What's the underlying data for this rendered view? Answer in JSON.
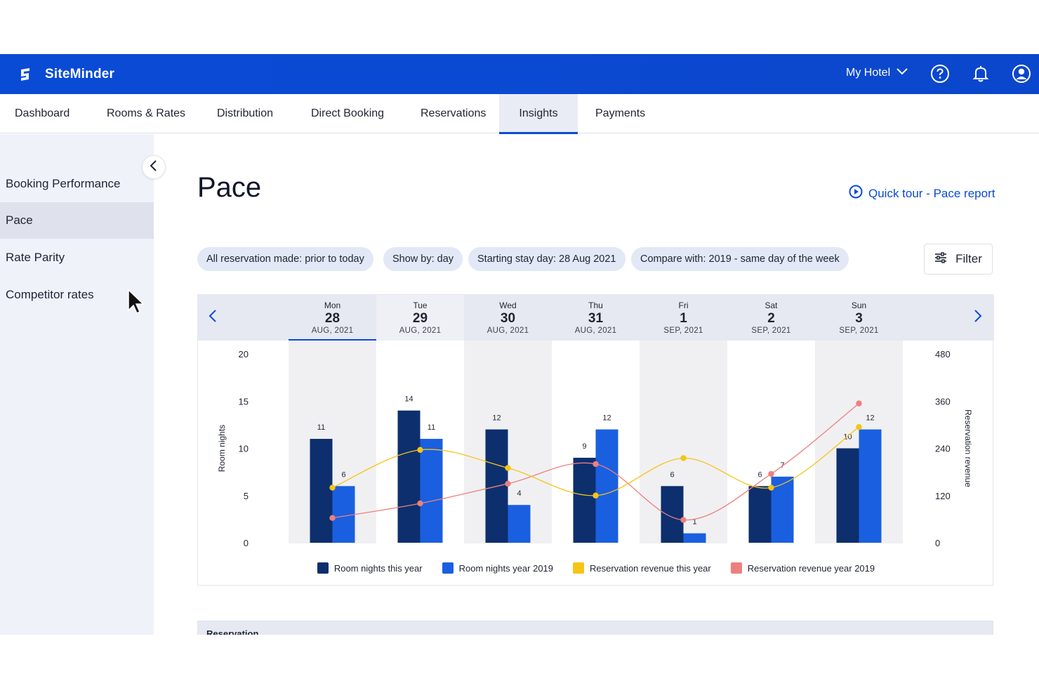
{
  "app": {
    "name": "SiteMinder"
  },
  "header": {
    "hotel": "My Hotel"
  },
  "nav": {
    "tabs": [
      {
        "label": "Dashboard"
      },
      {
        "label": "Rooms & Rates"
      },
      {
        "label": "Distribution"
      },
      {
        "label": "Direct Booking"
      },
      {
        "label": "Reservations"
      },
      {
        "label": "Insights",
        "active": true
      },
      {
        "label": "Payments"
      }
    ]
  },
  "sidebar": {
    "items": [
      {
        "label": "Booking Performance"
      },
      {
        "label": "Pace",
        "active": true
      },
      {
        "label": "Rate Parity"
      },
      {
        "label": "Competitor rates"
      }
    ]
  },
  "page": {
    "title": "Pace",
    "quick_tour": "Quick tour - Pace report"
  },
  "filters": {
    "chips": [
      "All reservation made: prior to today",
      "Show by: day",
      "Starting stay day: 28 Aug 2021",
      "Compare with:  2019 - same day of the week"
    ],
    "filter_label": "Filter"
  },
  "dates": [
    {
      "dow": "Mon",
      "day": "28",
      "month": "AUG, 2021",
      "selected": true
    },
    {
      "dow": "Tue",
      "day": "29",
      "month": "AUG, 2021"
    },
    {
      "dow": "Wed",
      "day": "30",
      "month": "AUG, 2021"
    },
    {
      "dow": "Thu",
      "day": "31",
      "month": "AUG, 2021"
    },
    {
      "dow": "Fri",
      "day": "1",
      "month": "SEP, 2021"
    },
    {
      "dow": "Sat",
      "day": "2",
      "month": "SEP, 2021"
    },
    {
      "dow": "Sun",
      "day": "3",
      "month": "SEP, 2021"
    }
  ],
  "colors": {
    "brand": "#0a4bd6",
    "room_nights_this_year": "#0d2f6e",
    "room_nights_2019": "#1a5fe0",
    "revenue_this_year": "#f6c416",
    "revenue_2019": "#ee7f7f"
  },
  "chart_data": {
    "type": "bar",
    "categories": [
      "Mon 28",
      "Tue 29",
      "Wed 30",
      "Thu 31",
      "Fri 1",
      "Sat 2",
      "Sun 3"
    ],
    "ylabel": "Room nights",
    "y2label": "Reservation revenue",
    "ylim": [
      0,
      20
    ],
    "y2lim": [
      0,
      480
    ],
    "yticks": [
      0,
      5,
      10,
      15,
      20
    ],
    "y2ticks": [
      0,
      120,
      240,
      360,
      480
    ],
    "series": [
      {
        "name": "Room nights this year",
        "kind": "bar",
        "axis": "left",
        "values": [
          11,
          14,
          12,
          9,
          6,
          6,
          10
        ]
      },
      {
        "name": "Room nights year 2019",
        "kind": "bar",
        "axis": "left",
        "values": [
          6,
          11,
          4,
          12,
          1,
          7,
          12
        ]
      },
      {
        "name": "Reservation revenue this year",
        "kind": "line",
        "axis": "right",
        "values": [
          140,
          236,
          190,
          120,
          215,
          140,
          294
        ]
      },
      {
        "name": "Reservation revenue year 2019",
        "kind": "line",
        "axis": "right",
        "values": [
          63,
          100,
          150,
          200,
          58,
          175,
          354
        ]
      }
    ],
    "legend": "bottom"
  },
  "table": {
    "first_header": "Reservation"
  }
}
